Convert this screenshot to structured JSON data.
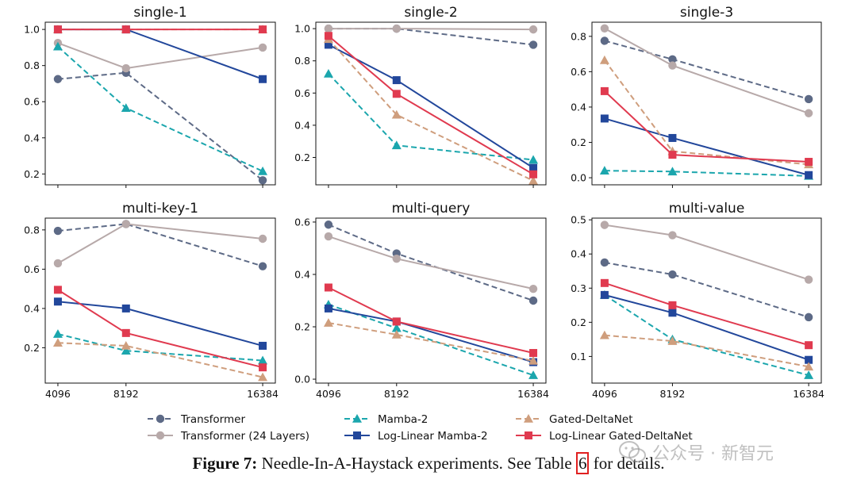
{
  "figure": {
    "caption_label": "Figure 7:",
    "caption_text_before": " Needle-In-A-Haystack experiments. See Table ",
    "caption_ref": "6",
    "caption_text_after": " for details.",
    "watermark_text": "公众号 · 新智元"
  },
  "series_styles": [
    {
      "name": "Transformer",
      "color": "#5d6a86",
      "dash": true,
      "marker": "circle"
    },
    {
      "name": "Transformer (24 Layers)",
      "color": "#b7a9a9",
      "dash": false,
      "marker": "circle"
    },
    {
      "name": "Mamba-2",
      "color": "#1ba6ad",
      "dash": true,
      "marker": "triangle"
    },
    {
      "name": "Log-Linear Mamba-2",
      "color": "#22479b",
      "dash": false,
      "marker": "square"
    },
    {
      "name": "Gated-DeltaNet",
      "color": "#cf9e7d",
      "dash": true,
      "marker": "triangle"
    },
    {
      "name": "Log-Linear Gated-DeltaNet",
      "color": "#e03a4f",
      "dash": false,
      "marker": "square"
    }
  ],
  "chart_data": [
    {
      "type": "line",
      "title": "single-1",
      "categories": [
        "4096",
        "8192",
        "16384"
      ],
      "ylim": [
        0.14,
        1.04
      ],
      "yticks": [
        "0.2",
        "0.4",
        "0.6",
        "0.8",
        "1.0"
      ],
      "show_xticklabels": false,
      "series": [
        {
          "name": "Transformer",
          "values": [
            0.725,
            0.76,
            0.165
          ]
        },
        {
          "name": "Transformer (24 Layers)",
          "values": [
            0.925,
            0.785,
            0.9
          ]
        },
        {
          "name": "Mamba-2",
          "values": [
            0.905,
            0.565,
            0.215
          ]
        },
        {
          "name": "Log-Linear Mamba-2",
          "values": [
            1.0,
            1.0,
            0.725
          ]
        },
        {
          "name": "Gated-DeltaNet",
          "values": [
            1.0,
            1.0,
            1.0
          ]
        },
        {
          "name": "Log-Linear Gated-DeltaNet",
          "values": [
            1.0,
            1.0,
            1.0
          ]
        }
      ]
    },
    {
      "type": "line",
      "title": "single-2",
      "categories": [
        "4096",
        "8192",
        "16384"
      ],
      "ylim": [
        0.03,
        1.04
      ],
      "yticks": [
        "0.2",
        "0.4",
        "0.6",
        "0.8",
        "1.0"
      ],
      "show_xticklabels": false,
      "series": [
        {
          "name": "Transformer",
          "values": [
            1.0,
            1.0,
            0.9
          ]
        },
        {
          "name": "Transformer (24 Layers)",
          "values": [
            1.0,
            1.0,
            0.995
          ]
        },
        {
          "name": "Mamba-2",
          "values": [
            0.72,
            0.275,
            0.185
          ]
        },
        {
          "name": "Log-Linear Mamba-2",
          "values": [
            0.9,
            0.68,
            0.135
          ]
        },
        {
          "name": "Gated-DeltaNet",
          "values": [
            0.935,
            0.465,
            0.055
          ]
        },
        {
          "name": "Log-Linear Gated-DeltaNet",
          "values": [
            0.955,
            0.595,
            0.095
          ]
        }
      ]
    },
    {
      "type": "line",
      "title": "single-3",
      "categories": [
        "4096",
        "8192",
        "16384"
      ],
      "ylim": [
        -0.04,
        0.88
      ],
      "yticks": [
        "0.0",
        "0.2",
        "0.4",
        "0.6",
        "0.8"
      ],
      "show_xticklabels": false,
      "series": [
        {
          "name": "Transformer",
          "values": [
            0.775,
            0.67,
            0.445
          ]
        },
        {
          "name": "Transformer (24 Layers)",
          "values": [
            0.845,
            0.635,
            0.365
          ]
        },
        {
          "name": "Mamba-2",
          "values": [
            0.04,
            0.035,
            0.01
          ]
        },
        {
          "name": "Log-Linear Mamba-2",
          "values": [
            0.335,
            0.225,
            0.015
          ]
        },
        {
          "name": "Gated-DeltaNet",
          "values": [
            0.665,
            0.15,
            0.075
          ]
        },
        {
          "name": "Log-Linear Gated-DeltaNet",
          "values": [
            0.49,
            0.13,
            0.09
          ]
        }
      ]
    },
    {
      "type": "line",
      "title": "multi-key-1",
      "categories": [
        "4096",
        "8192",
        "16384"
      ],
      "ylim": [
        0.02,
        0.86
      ],
      "yticks": [
        "0.2",
        "0.4",
        "0.6",
        "0.8"
      ],
      "show_xticklabels": true,
      "series": [
        {
          "name": "Transformer",
          "values": [
            0.795,
            0.83,
            0.615
          ]
        },
        {
          "name": "Transformer (24 Layers)",
          "values": [
            0.63,
            0.83,
            0.755
          ]
        },
        {
          "name": "Mamba-2",
          "values": [
            0.27,
            0.185,
            0.135
          ]
        },
        {
          "name": "Log-Linear Mamba-2",
          "values": [
            0.435,
            0.4,
            0.21
          ]
        },
        {
          "name": "Gated-DeltaNet",
          "values": [
            0.225,
            0.21,
            0.05
          ]
        },
        {
          "name": "Log-Linear Gated-DeltaNet",
          "values": [
            0.495,
            0.275,
            0.1
          ]
        }
      ]
    },
    {
      "type": "line",
      "title": "multi-query",
      "categories": [
        "4096",
        "8192",
        "16384"
      ],
      "ylim": [
        -0.015,
        0.615
      ],
      "yticks": [
        "0.0",
        "0.2",
        "0.4",
        "0.6"
      ],
      "show_xticklabels": true,
      "series": [
        {
          "name": "Transformer",
          "values": [
            0.59,
            0.48,
            0.3
          ]
        },
        {
          "name": "Transformer (24 Layers)",
          "values": [
            0.545,
            0.46,
            0.345
          ]
        },
        {
          "name": "Mamba-2",
          "values": [
            0.285,
            0.195,
            0.015
          ]
        },
        {
          "name": "Log-Linear Mamba-2",
          "values": [
            0.27,
            0.22,
            0.065
          ]
        },
        {
          "name": "Gated-DeltaNet",
          "values": [
            0.215,
            0.17,
            0.07
          ]
        },
        {
          "name": "Log-Linear Gated-DeltaNet",
          "values": [
            0.35,
            0.22,
            0.1
          ]
        }
      ]
    },
    {
      "type": "line",
      "title": "multi-value",
      "categories": [
        "4096",
        "8192",
        "16384"
      ],
      "ylim": [
        0.022,
        0.505
      ],
      "yticks": [
        "0.1",
        "0.2",
        "0.3",
        "0.4",
        "0.5"
      ],
      "show_xticklabels": true,
      "series": [
        {
          "name": "Transformer",
          "values": [
            0.375,
            0.34,
            0.215
          ]
        },
        {
          "name": "Transformer (24 Layers)",
          "values": [
            0.485,
            0.455,
            0.325
          ]
        },
        {
          "name": "Mamba-2",
          "values": [
            0.28,
            0.15,
            0.045
          ]
        },
        {
          "name": "Log-Linear Mamba-2",
          "values": [
            0.28,
            0.228,
            0.09
          ]
        },
        {
          "name": "Gated-DeltaNet",
          "values": [
            0.162,
            0.145,
            0.07
          ]
        },
        {
          "name": "Log-Linear Gated-DeltaNet",
          "values": [
            0.315,
            0.25,
            0.133
          ]
        }
      ]
    }
  ]
}
